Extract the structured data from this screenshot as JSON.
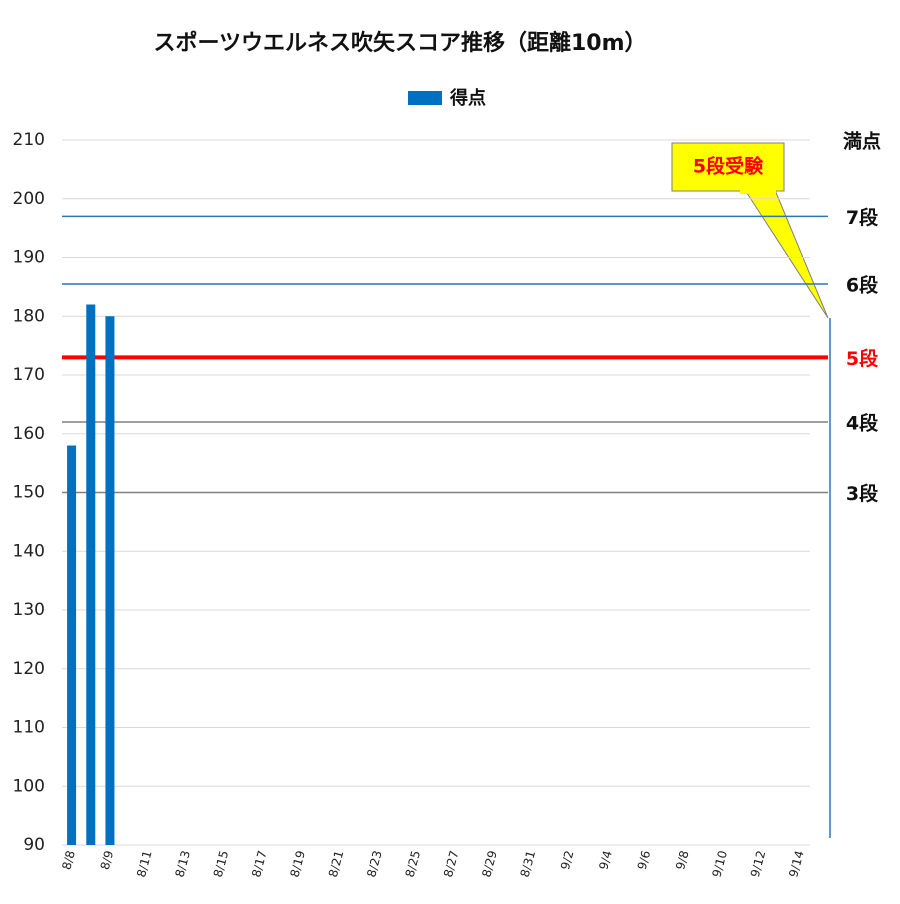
{
  "chart_data": {
    "type": "bar",
    "title": "スポーツウエルネス吹矢スコア推移（距離10m）",
    "legend": "得点",
    "color": "#0070c0",
    "categories": [
      "8/8",
      null,
      "8/9",
      null,
      "8/11",
      null,
      "8/13",
      null,
      "8/15",
      null,
      "8/17",
      null,
      "8/19",
      null,
      "8/21",
      null,
      "8/23",
      null,
      "8/25",
      null,
      "8/27",
      null,
      "8/29",
      null,
      "8/31",
      null,
      "9/2",
      null,
      "9/4",
      null,
      "9/6",
      null,
      "9/8",
      null,
      "9/10",
      null,
      "9/12",
      null,
      "9/14"
    ],
    "values": [
      158,
      182,
      180,
      null,
      null,
      null,
      null,
      null,
      null,
      null,
      null,
      null,
      null,
      null,
      null,
      null,
      null,
      null,
      null,
      null,
      null,
      null,
      null,
      null,
      null,
      null,
      null,
      null,
      null,
      null,
      null,
      null,
      null,
      null,
      null,
      null,
      null,
      null,
      null
    ],
    "ylim": [
      90,
      210
    ],
    "yticks": [
      90,
      100,
      110,
      120,
      130,
      140,
      150,
      160,
      170,
      180,
      190,
      200,
      210
    ],
    "grid": true,
    "reference_lines": [
      {
        "value": 210,
        "label": "満点",
        "color": null
      },
      {
        "value": 197,
        "label": "7段",
        "color": "#2e75b6"
      },
      {
        "value": 185.5,
        "label": "6段",
        "color": "#2e75b6"
      },
      {
        "value": 173,
        "label": "5段",
        "color": "#ff0000"
      },
      {
        "value": 162,
        "label": "4段",
        "color": "#808080"
      },
      {
        "value": 150,
        "label": "3段",
        "color": "#808080"
      }
    ],
    "annotation": "5段受験"
  }
}
